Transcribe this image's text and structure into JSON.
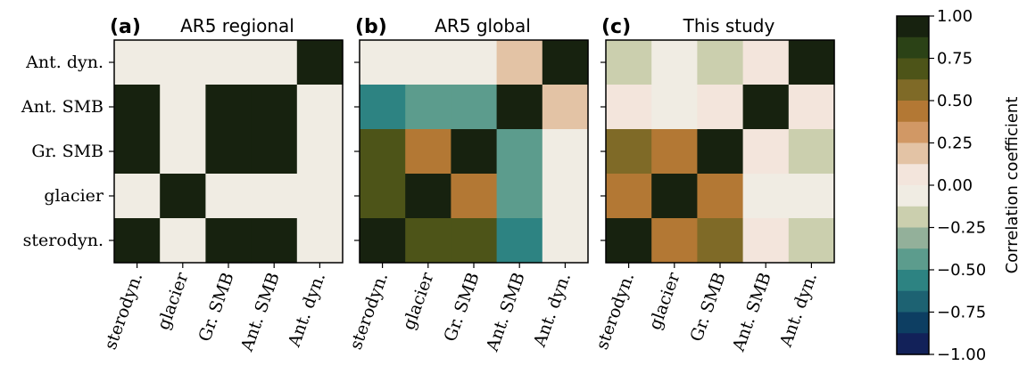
{
  "chart_data": {
    "type": "heatmap",
    "categories": [
      "sterodyn.",
      "glacier",
      "Gr. SMB",
      "Ant. SMB",
      "Ant. dyn."
    ],
    "panels": [
      {
        "letter": "(a)",
        "title": "AR5 regional",
        "values": [
          [
            0.0,
            0.0,
            0.0,
            0.0,
            1.0
          ],
          [
            1.0,
            0.0,
            1.0,
            1.0,
            0.0
          ],
          [
            1.0,
            0.0,
            1.0,
            1.0,
            0.0
          ],
          [
            0.0,
            1.0,
            0.0,
            0.0,
            0.0
          ],
          [
            1.0,
            0.0,
            1.0,
            1.0,
            0.0
          ]
        ]
      },
      {
        "letter": "(b)",
        "title": "AR5 global",
        "values": [
          [
            -0.05,
            -0.05,
            -0.05,
            0.2,
            1.0
          ],
          [
            -0.55,
            -0.45,
            -0.45,
            1.0,
            0.2
          ],
          [
            0.75,
            0.5,
            1.0,
            -0.4,
            -0.05
          ],
          [
            0.75,
            1.0,
            0.5,
            -0.4,
            -0.05
          ],
          [
            1.0,
            0.75,
            0.75,
            -0.55,
            -0.05
          ]
        ]
      },
      {
        "letter": "(c)",
        "title": "This study",
        "values": [
          [
            -0.2,
            -0.05,
            -0.2,
            0.05,
            1.0
          ],
          [
            0.05,
            -0.05,
            0.05,
            1.0,
            0.05
          ],
          [
            0.6,
            0.5,
            1.0,
            0.05,
            -0.2
          ],
          [
            0.4,
            1.0,
            0.5,
            -0.05,
            -0.05
          ],
          [
            1.0,
            0.4,
            0.6,
            0.05,
            -0.2
          ]
        ]
      }
    ],
    "colorbar": {
      "label": "Correlation coefficient",
      "range": [
        -1.0,
        1.0
      ],
      "ticks": [
        "1.00",
        "0.75",
        "0.50",
        "0.25",
        "0.00",
        "−0.25",
        "−0.50",
        "−0.75",
        "−1.00"
      ],
      "colors_top_to_bottom": [
        "#17220f",
        "#2b4216",
        "#4d5418",
        "#7f6a27",
        "#b37834",
        "#d19865",
        "#e3c3a5",
        "#f3e5dc",
        "#f0ece3",
        "#cbcfae",
        "#93b09a",
        "#5c9c8d",
        "#2d8382",
        "#1d6272",
        "#0d3e62",
        "#122159"
      ]
    }
  }
}
